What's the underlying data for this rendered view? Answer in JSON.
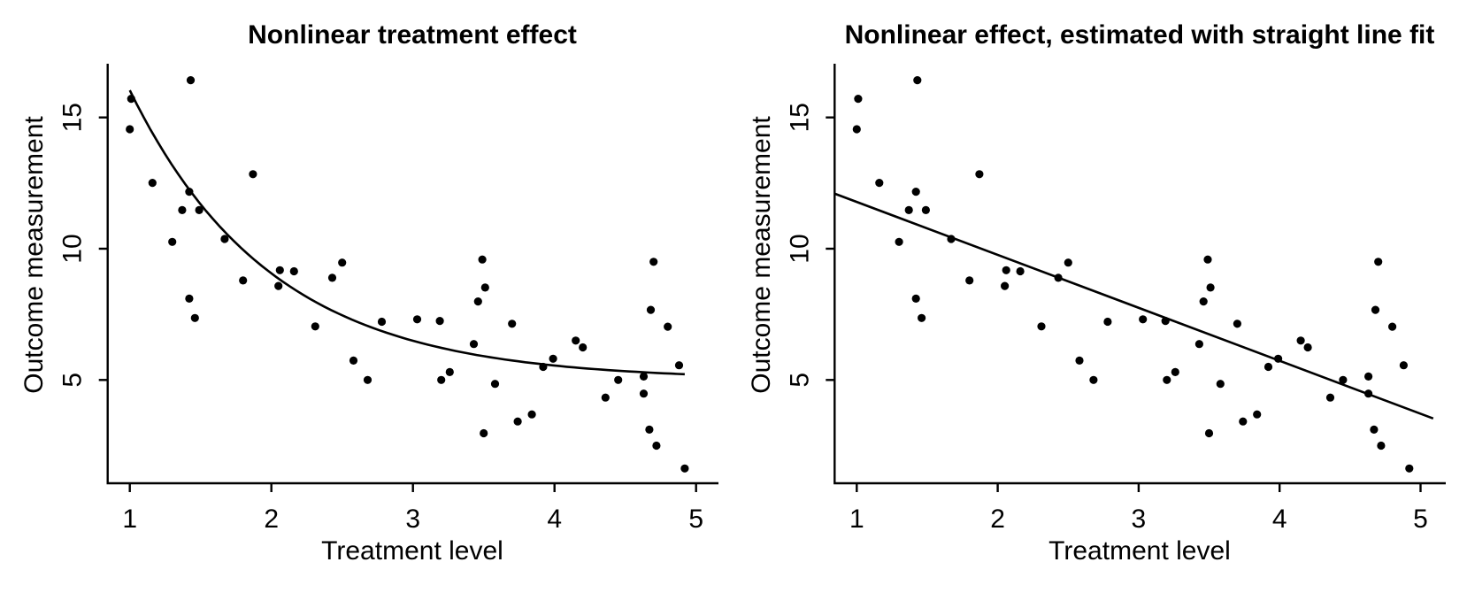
{
  "figure": {
    "background": "#ffffff",
    "ink_color": "#000000",
    "description": "Two-panel scatter plot: identical data in both panels; left shows true nonlinear treatment effect curve, right shows ordinary least squares straight line fit"
  },
  "chart_data": [
    {
      "type": "scatter",
      "title": "Nonlinear treatment effect",
      "xlabel": "Treatment level",
      "ylabel": "Outcome measurement",
      "x_ticks": [
        1,
        2,
        3,
        4,
        5
      ],
      "y_ticks": [
        5,
        10,
        15
      ],
      "xlim": [
        0.85,
        5.15
      ],
      "ylim": [
        1.1,
        17.0
      ],
      "grid": false,
      "legend": "none",
      "fit": {
        "kind": "exponential_curve",
        "formula": "y = 5 + 30*exp(-x)",
        "a": 5,
        "b": 30,
        "x_range": [
          1.0,
          4.92
        ]
      },
      "points": [
        [
          1.43,
          16.42
        ],
        [
          1.01,
          15.71
        ],
        [
          1.0,
          14.55
        ],
        [
          1.16,
          12.51
        ],
        [
          1.87,
          12.84
        ],
        [
          1.42,
          12.17
        ],
        [
          1.37,
          11.47
        ],
        [
          1.49,
          11.47
        ],
        [
          1.3,
          10.26
        ],
        [
          1.67,
          10.37
        ],
        [
          2.06,
          9.18
        ],
        [
          2.16,
          9.14
        ],
        [
          2.43,
          8.89
        ],
        [
          2.5,
          9.47
        ],
        [
          1.8,
          8.79
        ],
        [
          1.42,
          8.1
        ],
        [
          1.46,
          7.36
        ],
        [
          2.05,
          8.58
        ],
        [
          2.31,
          7.04
        ],
        [
          2.78,
          7.22
        ],
        [
          3.03,
          7.31
        ],
        [
          2.58,
          5.74
        ],
        [
          2.68,
          5.0
        ],
        [
          3.49,
          9.59
        ],
        [
          4.7,
          9.5
        ],
        [
          3.51,
          8.52
        ],
        [
          3.46,
          7.99
        ],
        [
          3.19,
          7.25
        ],
        [
          3.7,
          7.14
        ],
        [
          3.43,
          6.37
        ],
        [
          3.99,
          5.81
        ],
        [
          3.92,
          5.5
        ],
        [
          4.15,
          6.5
        ],
        [
          4.2,
          6.24
        ],
        [
          3.26,
          5.3
        ],
        [
          3.2,
          5.0
        ],
        [
          3.58,
          4.85
        ],
        [
          4.45,
          5.0
        ],
        [
          4.63,
          5.13
        ],
        [
          4.36,
          4.33
        ],
        [
          4.63,
          4.48
        ],
        [
          3.84,
          3.69
        ],
        [
          3.74,
          3.42
        ],
        [
          3.5,
          2.97
        ],
        [
          4.68,
          7.67
        ],
        [
          4.8,
          7.03
        ],
        [
          4.88,
          5.56
        ],
        [
          4.67,
          3.11
        ],
        [
          4.72,
          2.5
        ],
        [
          4.92,
          1.63
        ]
      ]
    },
    {
      "type": "scatter",
      "title": "Nonlinear effect, estimated with straight line fit",
      "xlabel": "Treatment level",
      "ylabel": "Outcome measurement",
      "x_ticks": [
        1,
        2,
        3,
        4,
        5
      ],
      "y_ticks": [
        5,
        10,
        15
      ],
      "xlim": [
        0.85,
        5.15
      ],
      "ylim": [
        1.1,
        17.0
      ],
      "grid": false,
      "legend": "none",
      "fit": {
        "kind": "linear",
        "formula": "y = 13.8 - 2.02*x",
        "intercept": 13.8,
        "slope": -2.017,
        "x_range": [
          0.847,
          5.09
        ]
      },
      "points": [
        [
          1.43,
          16.42
        ],
        [
          1.01,
          15.71
        ],
        [
          1.0,
          14.55
        ],
        [
          1.16,
          12.51
        ],
        [
          1.87,
          12.84
        ],
        [
          1.42,
          12.17
        ],
        [
          1.37,
          11.47
        ],
        [
          1.49,
          11.47
        ],
        [
          1.3,
          10.26
        ],
        [
          1.67,
          10.37
        ],
        [
          2.06,
          9.18
        ],
        [
          2.16,
          9.14
        ],
        [
          2.43,
          8.89
        ],
        [
          2.5,
          9.47
        ],
        [
          1.8,
          8.79
        ],
        [
          1.42,
          8.1
        ],
        [
          1.46,
          7.36
        ],
        [
          2.05,
          8.58
        ],
        [
          2.31,
          7.04
        ],
        [
          2.78,
          7.22
        ],
        [
          3.03,
          7.31
        ],
        [
          2.58,
          5.74
        ],
        [
          2.68,
          5.0
        ],
        [
          3.49,
          9.59
        ],
        [
          4.7,
          9.5
        ],
        [
          3.51,
          8.52
        ],
        [
          3.46,
          7.99
        ],
        [
          3.19,
          7.25
        ],
        [
          3.7,
          7.14
        ],
        [
          3.43,
          6.37
        ],
        [
          3.99,
          5.81
        ],
        [
          3.92,
          5.5
        ],
        [
          4.15,
          6.5
        ],
        [
          4.2,
          6.24
        ],
        [
          3.26,
          5.3
        ],
        [
          3.2,
          5.0
        ],
        [
          3.58,
          4.85
        ],
        [
          4.45,
          5.0
        ],
        [
          4.63,
          5.13
        ],
        [
          4.36,
          4.33
        ],
        [
          4.63,
          4.48
        ],
        [
          3.84,
          3.69
        ],
        [
          3.74,
          3.42
        ],
        [
          3.5,
          2.97
        ],
        [
          4.68,
          7.67
        ],
        [
          4.8,
          7.03
        ],
        [
          4.88,
          5.56
        ],
        [
          4.67,
          3.11
        ],
        [
          4.72,
          2.5
        ],
        [
          4.92,
          1.63
        ]
      ]
    }
  ]
}
